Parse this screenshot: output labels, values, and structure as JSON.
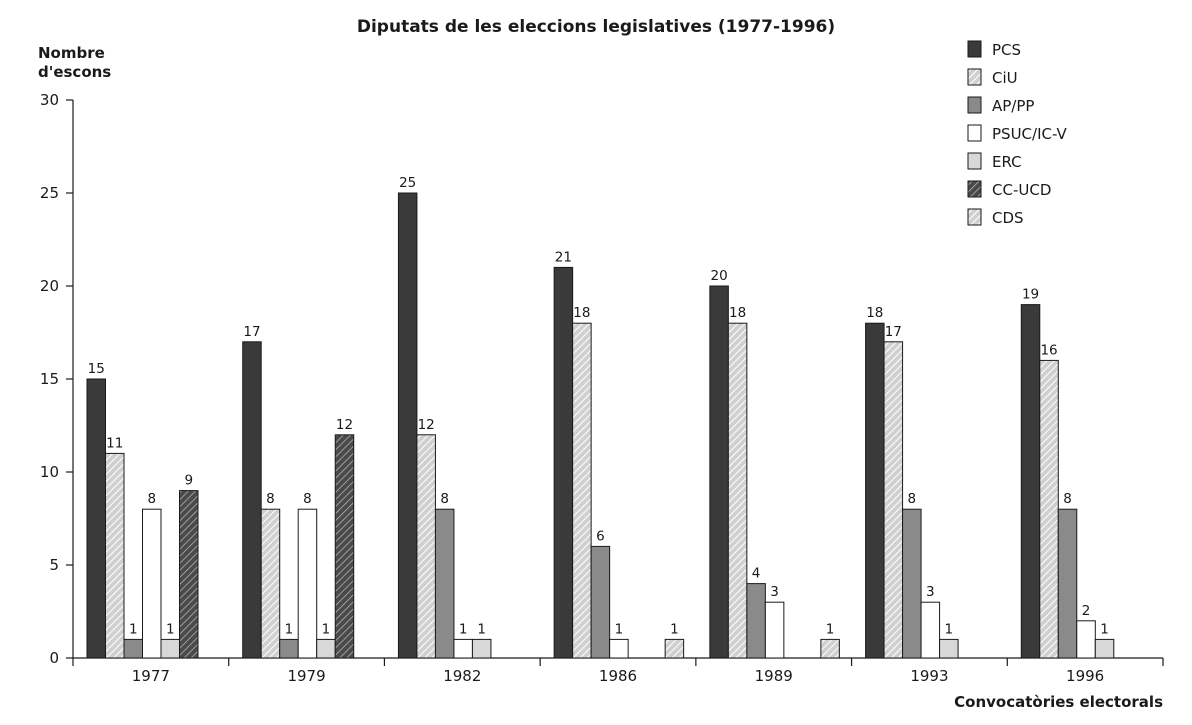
{
  "chart_data": {
    "type": "bar",
    "title": "Diputats de les eleccions legislatives (1977-1996)",
    "ylabel": [
      "Nombre",
      "d'escons"
    ],
    "xlabel": "Convocatòries electorals",
    "ylim": [
      0,
      30
    ],
    "yticks": [
      0,
      5,
      10,
      15,
      20,
      25,
      30
    ],
    "categories": [
      "1977",
      "1979",
      "1982",
      "1986",
      "1989",
      "1993",
      "1996"
    ],
    "legend_position": "top-right",
    "series": [
      {
        "name": "PCS",
        "fill": "#3a3a3a",
        "pattern": "solid",
        "values": [
          15,
          17,
          25,
          21,
          20,
          18,
          19
        ]
      },
      {
        "name": "CiU",
        "fill": "#c8c8c8",
        "pattern": "hatch",
        "values": [
          11,
          8,
          12,
          18,
          18,
          17,
          16
        ]
      },
      {
        "name": "AP/PP",
        "fill": "#8a8a8a",
        "pattern": "solid",
        "values": [
          1,
          1,
          8,
          6,
          4,
          8,
          8
        ]
      },
      {
        "name": "PSUC/IC-V",
        "fill": "#ffffff",
        "pattern": "solid",
        "values": [
          8,
          8,
          1,
          1,
          3,
          3,
          2
        ]
      },
      {
        "name": "ERC",
        "fill": "#d8d8d8",
        "pattern": "solid",
        "values": [
          1,
          1,
          1,
          null,
          null,
          1,
          1
        ]
      },
      {
        "name": "CC-UCD",
        "fill": "#6e6e6e",
        "pattern": "hatch-dark",
        "values": [
          9,
          12,
          null,
          null,
          null,
          null,
          null
        ]
      },
      {
        "name": "CDS",
        "fill": "#e0e0e0",
        "pattern": "hatch",
        "values": [
          null,
          null,
          null,
          1,
          1,
          null,
          null
        ]
      }
    ]
  }
}
